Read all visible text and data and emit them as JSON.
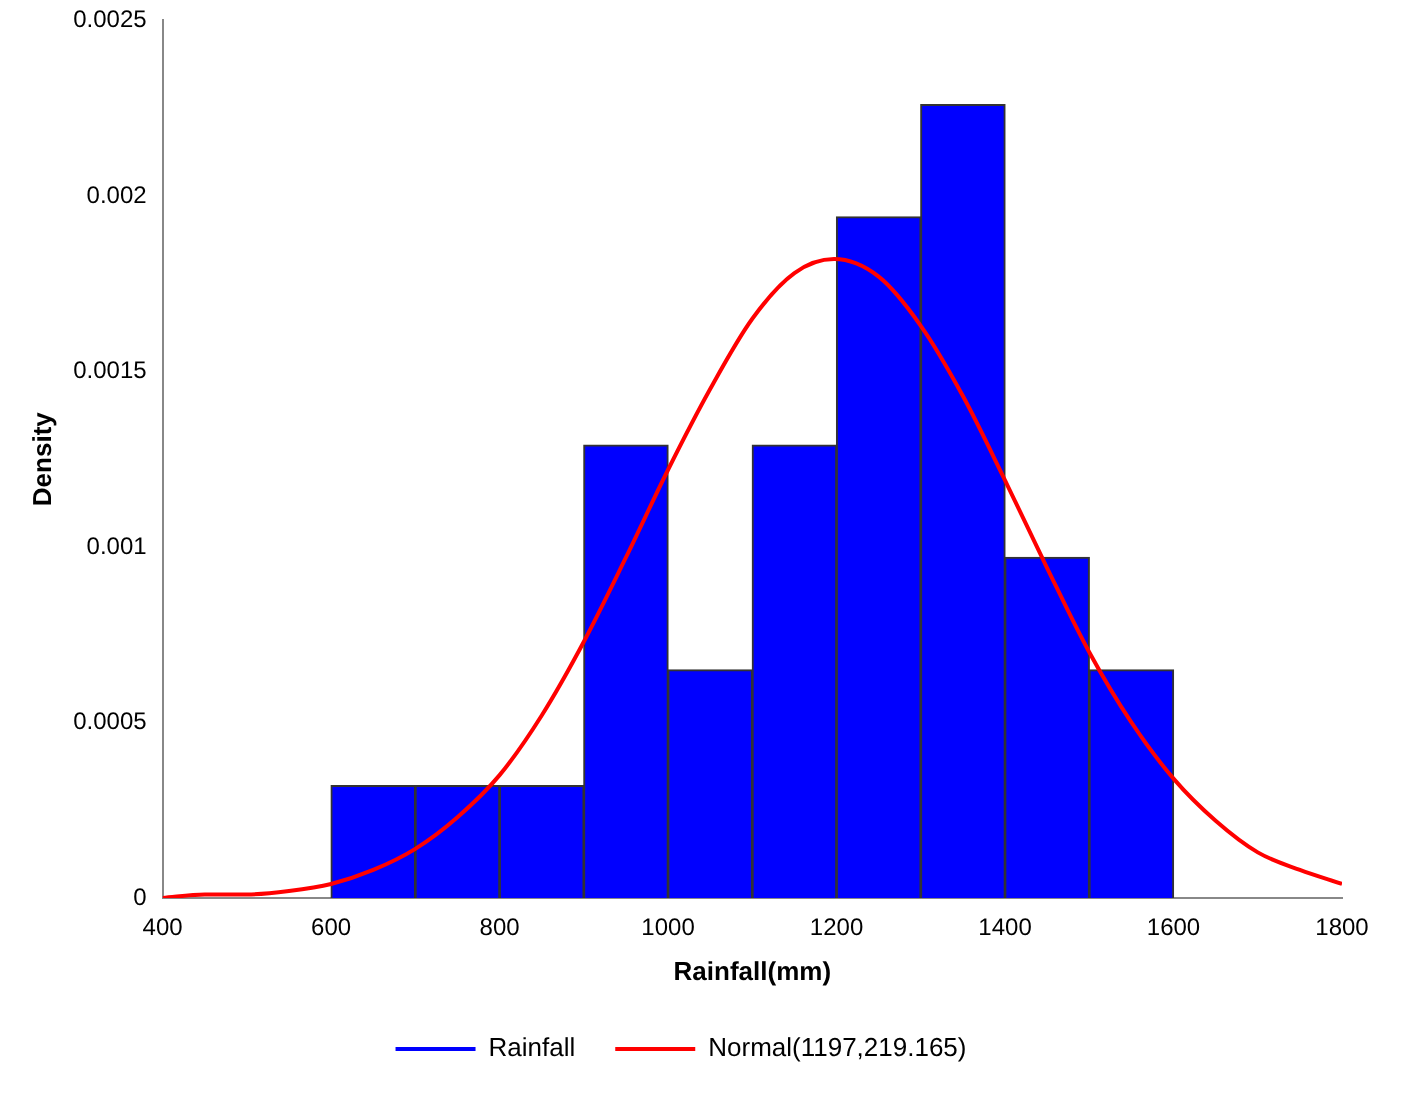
{
  "chart_data": {
    "type": "histogram",
    "xlabel": "Rainfall(mm)",
    "ylabel": "Density",
    "bins": [
      600,
      700,
      800,
      900,
      1000,
      1100,
      1200,
      1300,
      1400,
      1500,
      1600
    ],
    "series": [
      {
        "name": "Rainfall",
        "color": "#0000ff",
        "values": [
          0.00032,
          0.00032,
          0.00032,
          0.00129,
          0.00065,
          0.00129,
          0.00194,
          0.00226,
          0.00097,
          0.00065
        ]
      },
      {
        "type": "line",
        "name": "Normal(1197,219.165)",
        "color": "#ff0000",
        "x": [
          400,
          450,
          500,
          550,
          600,
          650,
          700,
          750,
          800,
          850,
          900,
          950,
          1000,
          1050,
          1100,
          1150,
          1197,
          1250,
          1300,
          1350,
          1400,
          1450,
          1500,
          1550,
          1600,
          1650,
          1700,
          1750,
          1800
        ],
        "values": [
          0,
          1e-05,
          1e-05,
          2e-05,
          4e-05,
          8e-05,
          0.00014,
          0.00023,
          0.00035,
          0.00052,
          0.00073,
          0.00097,
          0.00122,
          0.00145,
          0.00165,
          0.00178,
          0.00182,
          0.00177,
          0.00163,
          0.00143,
          0.00119,
          0.00094,
          0.0007,
          0.0005,
          0.00034,
          0.00022,
          0.00013,
          8e-05,
          4e-05
        ]
      }
    ],
    "xlim": [
      400,
      1800
    ],
    "xticks": [
      400,
      600,
      800,
      1000,
      1200,
      1400,
      1600,
      1800
    ],
    "ylim": [
      0,
      0.0025
    ],
    "yticks": [
      0,
      0.0005,
      0.001,
      0.0015,
      0.002,
      0.0025
    ],
    "grid": false,
    "legend": "bottom",
    "marker": "none",
    "line_style": "solid"
  }
}
